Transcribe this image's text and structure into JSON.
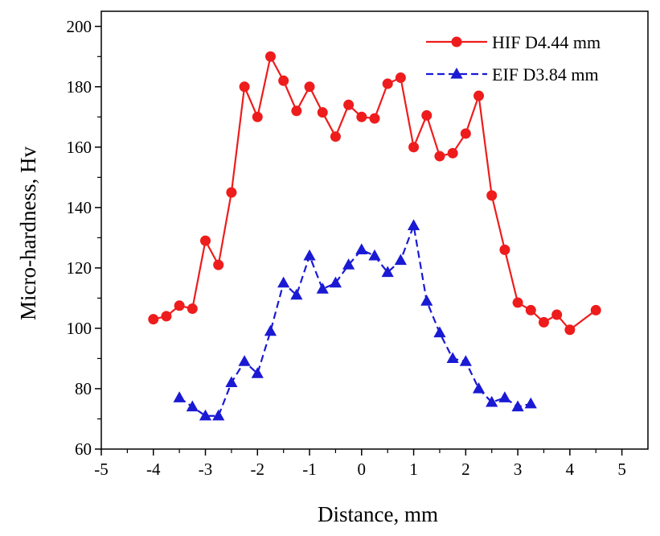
{
  "chart_data": {
    "type": "line",
    "xlabel": "Distance, mm",
    "ylabel": "Micro-hardness, Hv",
    "xlim": [
      -5,
      5.5
    ],
    "ylim": [
      60,
      205
    ],
    "xticks": [
      "-5",
      "-4",
      "-3",
      "-2",
      "-1",
      "0",
      "1",
      "2",
      "3",
      "4",
      "5"
    ],
    "xtick_values": [
      -5,
      -4,
      -3,
      -2,
      -1,
      0,
      1,
      2,
      3,
      4,
      5
    ],
    "yticks": [
      "60",
      "80",
      "100",
      "120",
      "140",
      "160",
      "180",
      "200"
    ],
    "ytick_values": [
      60,
      80,
      100,
      120,
      140,
      160,
      180,
      200
    ],
    "grid": false,
    "legend_position": "top-right",
    "series": [
      {
        "name": "HIF D4.44 mm",
        "color": "#ee1c1c",
        "marker": "circle",
        "line_style": "solid",
        "x": [
          -4,
          -3.75,
          -3.5,
          -3.25,
          -3,
          -2.75,
          -2.5,
          -2.25,
          -2,
          -1.75,
          -1.5,
          -1.25,
          -1,
          -0.75,
          -0.5,
          -0.25,
          0,
          0.25,
          0.5,
          0.75,
          1,
          1.25,
          1.5,
          1.75,
          2,
          2.25,
          2.5,
          2.75,
          3,
          3.25,
          3.5,
          3.75,
          4,
          4.5
        ],
        "y": [
          103,
          104,
          107.5,
          106.5,
          129,
          121,
          145,
          180,
          170,
          190,
          182,
          172,
          180,
          171.5,
          163.5,
          174,
          170,
          169.5,
          181,
          183,
          160,
          170.5,
          157,
          158,
          164.5,
          177,
          144,
          126,
          108.5,
          106,
          102,
          104.5,
          99.5,
          106
        ]
      },
      {
        "name": "EIF D3.84 mm",
        "color": "#1a1ad4",
        "marker": "triangle",
        "line_style": "dashed",
        "x": [
          -3.5,
          -3.25,
          -3,
          -2.75,
          -2.5,
          -2.25,
          -2,
          -1.75,
          -1.5,
          -1.25,
          -1,
          -0.75,
          -0.5,
          -0.25,
          0,
          0.25,
          0.5,
          0.75,
          1,
          1.25,
          1.5,
          1.75,
          2,
          2.25,
          2.5,
          2.75,
          3,
          3.25
        ],
        "y": [
          77,
          74,
          71,
          71,
          82,
          89,
          85,
          99,
          115,
          111,
          124,
          113,
          115,
          121,
          126,
          124,
          118.5,
          122.5,
          134,
          109,
          98.5,
          90,
          89,
          80,
          75.5,
          77,
          74,
          75
        ]
      }
    ]
  }
}
